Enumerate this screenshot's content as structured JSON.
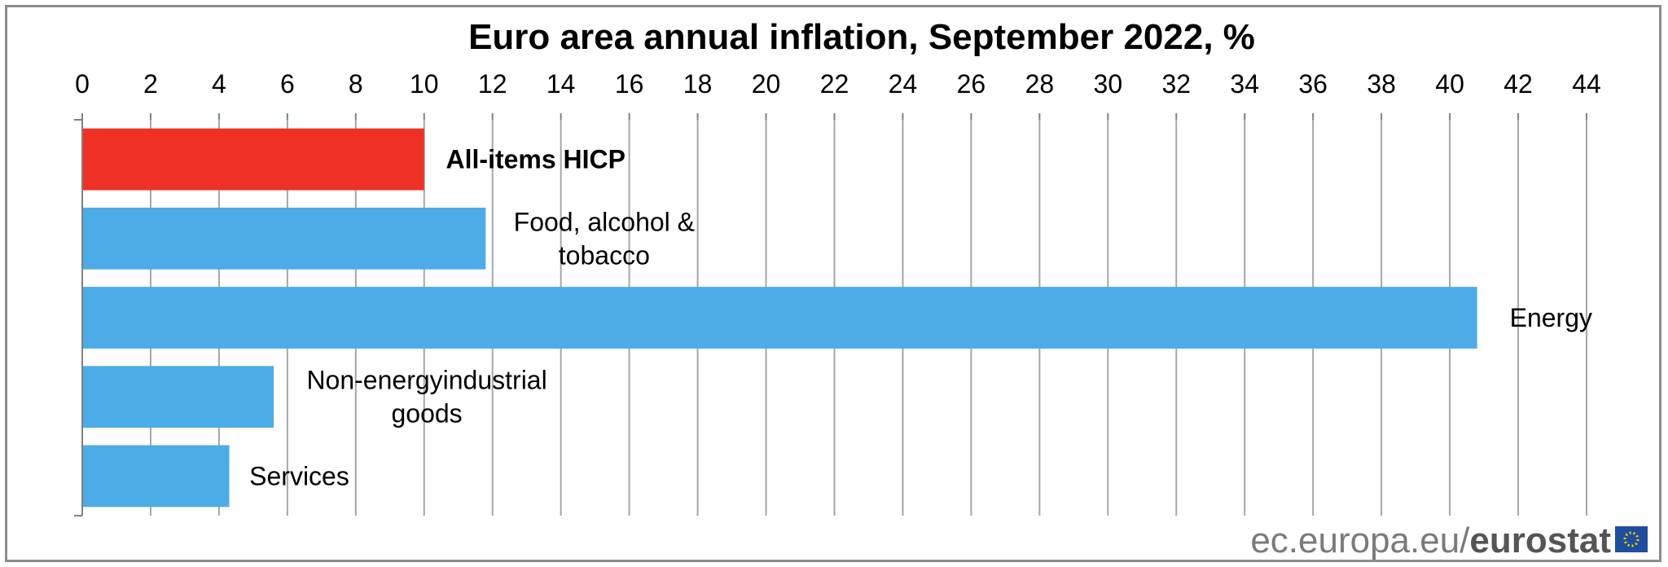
{
  "chart_data": {
    "type": "bar",
    "orientation": "horizontal",
    "title": "Euro area annual inflation, September 2022, %",
    "xlabel": "",
    "ylabel": "",
    "xlim": [
      0,
      44
    ],
    "x_ticks": [
      0,
      2,
      4,
      6,
      8,
      10,
      12,
      14,
      16,
      18,
      20,
      22,
      24,
      26,
      28,
      30,
      32,
      34,
      36,
      38,
      40,
      42,
      44
    ],
    "grid": true,
    "categories": [
      [
        "All-items HICP"
      ],
      [
        "Food, alcohol &",
        "tobacco"
      ],
      [
        "Energy"
      ],
      [
        "Non-energyindustrial",
        "goods"
      ],
      [
        "Services"
      ]
    ],
    "values": [
      10.0,
      11.8,
      40.8,
      5.6,
      4.3
    ],
    "highlight_index": 0,
    "colors": {
      "highlight": "#ee3124",
      "bar": "#4dabe8",
      "grid": "#a6a6a6"
    }
  },
  "watermark": {
    "site": "ec.europa.eu/",
    "brand": "eurostat"
  }
}
